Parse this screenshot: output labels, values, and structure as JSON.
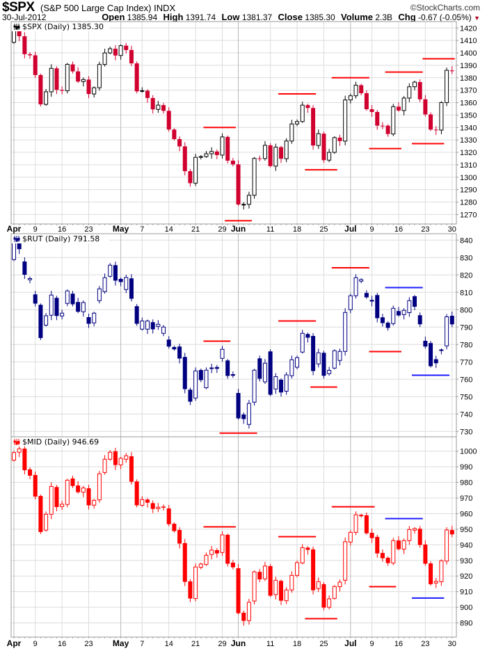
{
  "header": {
    "symbol": "$SPX",
    "name": "(S&P 500 Large Cap Index) INDX",
    "copyright": "©StockCharts.com",
    "date": "30-Jul-2012",
    "open_label": "Open",
    "open": "1385.94",
    "high_label": "High",
    "high": "1391.74",
    "low_label": "Low",
    "low": "1381.37",
    "close_label": "Close",
    "close": "1385.30",
    "volume_label": "Volume",
    "volume": "2.3B",
    "chg_label": "Chg",
    "chg": "-0.67 (-0.05%)",
    "chg_arrow": "▼"
  },
  "chart_data": {
    "type": "candlestick",
    "dates": [
      "2012-04-02",
      "2012-04-03",
      "2012-04-04",
      "2012-04-05",
      "2012-04-09",
      "2012-04-10",
      "2012-04-11",
      "2012-04-12",
      "2012-04-13",
      "2012-04-16",
      "2012-04-17",
      "2012-04-18",
      "2012-04-19",
      "2012-04-20",
      "2012-04-23",
      "2012-04-24",
      "2012-04-25",
      "2012-04-26",
      "2012-04-27",
      "2012-04-30",
      "2012-05-01",
      "2012-05-02",
      "2012-05-03",
      "2012-05-04",
      "2012-05-07",
      "2012-05-08",
      "2012-05-09",
      "2012-05-10",
      "2012-05-11",
      "2012-05-14",
      "2012-05-15",
      "2012-05-16",
      "2012-05-17",
      "2012-05-18",
      "2012-05-21",
      "2012-05-22",
      "2012-05-23",
      "2012-05-24",
      "2012-05-25",
      "2012-05-29",
      "2012-05-30",
      "2012-05-31",
      "2012-06-01",
      "2012-06-04",
      "2012-06-05",
      "2012-06-06",
      "2012-06-07",
      "2012-06-08",
      "2012-06-11",
      "2012-06-12",
      "2012-06-13",
      "2012-06-14",
      "2012-06-15",
      "2012-06-18",
      "2012-06-19",
      "2012-06-20",
      "2012-06-21",
      "2012-06-22",
      "2012-06-25",
      "2012-06-26",
      "2012-06-27",
      "2012-06-28",
      "2012-06-29",
      "2012-07-02",
      "2012-07-03",
      "2012-07-05",
      "2012-07-06",
      "2012-07-09",
      "2012-07-10",
      "2012-07-11",
      "2012-07-12",
      "2012-07-13",
      "2012-07-16",
      "2012-07-17",
      "2012-07-18",
      "2012-07-19",
      "2012-07-20",
      "2012-07-23",
      "2012-07-24",
      "2012-07-25",
      "2012-07-26",
      "2012-07-27",
      "2012-07-30"
    ],
    "x_labels": [
      {
        "date": "2012-04-02",
        "label": "Apr",
        "month": true
      },
      {
        "date": "2012-04-09",
        "label": "9"
      },
      {
        "date": "2012-04-16",
        "label": "16"
      },
      {
        "date": "2012-04-23",
        "label": "23"
      },
      {
        "date": "2012-05-01",
        "label": "May",
        "month": true
      },
      {
        "date": "2012-05-07",
        "label": "7"
      },
      {
        "date": "2012-05-14",
        "label": "14"
      },
      {
        "date": "2012-05-21",
        "label": "21"
      },
      {
        "date": "2012-05-29",
        "label": "29"
      },
      {
        "date": "2012-06-01",
        "label": "Jun",
        "month": true
      },
      {
        "date": "2012-06-11",
        "label": "11"
      },
      {
        "date": "2012-06-18",
        "label": "18"
      },
      {
        "date": "2012-06-25",
        "label": "25"
      },
      {
        "date": "2012-07-02",
        "label": "Jul",
        "month": true
      },
      {
        "date": "2012-07-09",
        "label": "9"
      },
      {
        "date": "2012-07-16",
        "label": "16"
      },
      {
        "date": "2012-07-23",
        "label": "23"
      },
      {
        "date": "2012-07-30",
        "label": "30"
      }
    ],
    "grid": true,
    "panels": [
      {
        "id": "spx",
        "legend": "$SPX (Daily) 1385.30",
        "ylim": [
          1262.4,
          1425.2
        ],
        "yticks": [
          1270,
          1280,
          1290,
          1300,
          1310,
          1320,
          1330,
          1340,
          1350,
          1360,
          1370,
          1380,
          1390,
          1400,
          1410,
          1420
        ],
        "up_color": "#000000",
        "down_color": "#d0002f",
        "color_by_prev_close": true,
        "open": [
          1408.47,
          1419.04,
          1413.38,
          1398.96,
          1398.08,
          1382.2,
          1358.59,
          1368.71,
          1387.57,
          1370.26,
          1369.57,
          1390.78,
          1385.14,
          1376.92,
          1378.53,
          1366.94,
          1371.97,
          1390.69,
          1399.98,
          1403.36,
          1397.91,
          1405.82,
          1402.31,
          1391.57,
          1369.1,
          1369.58,
          1363.72,
          1354.58,
          1357.99,
          1353.39,
          1338.35,
          1330.66,
          1324.8,
          1304.86,
          1295.22,
          1315.99,
          1316.63,
          1318.86,
          1320.68,
          1317.82,
          1332.42,
          1313.32,
          1310.33,
          1278.04,
          1278.18,
          1285.5,
          1315.13,
          1314.99,
          1325.66,
          1308.93,
          1324.18,
          1314.88,
          1329.1,
          1342.84,
          1344.78,
          1357.98,
          1355.69,
          1325.51,
          1335.02,
          1313.72,
          1319.99,
          1331.85,
          1329.04,
          1362.16,
          1365.51,
          1374.02,
          1367.58,
          1354.68,
          1352.46,
          1341.47,
          1341.45,
          1334.76,
          1356.78,
          1353.64,
          1363.67,
          1372.78,
          1376.51,
          1362.66,
          1350.52,
          1338.31,
          1337.89,
          1360.02,
          1385.94
        ],
        "close": [
          1419.04,
          1413.38,
          1398.96,
          1398.08,
          1382.2,
          1358.59,
          1368.71,
          1387.57,
          1370.26,
          1369.57,
          1390.78,
          1385.14,
          1376.92,
          1378.53,
          1366.94,
          1371.97,
          1390.69,
          1399.98,
          1403.36,
          1397.91,
          1405.82,
          1402.31,
          1391.57,
          1369.1,
          1369.58,
          1363.72,
          1354.58,
          1357.99,
          1353.39,
          1338.35,
          1330.66,
          1324.8,
          1304.86,
          1295.22,
          1315.99,
          1316.63,
          1318.86,
          1320.68,
          1317.82,
          1332.42,
          1313.32,
          1310.33,
          1278.04,
          1278.18,
          1285.5,
          1315.13,
          1314.99,
          1325.66,
          1308.93,
          1324.18,
          1314.88,
          1329.1,
          1342.84,
          1344.78,
          1357.98,
          1355.69,
          1325.51,
          1335.02,
          1313.72,
          1319.99,
          1331.85,
          1329.04,
          1362.16,
          1365.51,
          1374.02,
          1367.58,
          1354.68,
          1352.46,
          1341.47,
          1341.45,
          1334.76,
          1356.78,
          1353.64,
          1363.67,
          1372.78,
          1376.51,
          1362.66,
          1350.52,
          1338.31,
          1337.89,
          1360.02,
          1385.97,
          1385.3
        ],
        "levels": [
          {
            "price": 1340,
            "from": "2012-05-23",
            "to": "2012-05-31",
            "color": "#ff0000"
          },
          {
            "price": 1265,
            "from": "2012-05-30",
            "to": "2012-06-05",
            "color": "#ff0000"
          },
          {
            "price": 1367,
            "from": "2012-06-13",
            "to": "2012-06-21",
            "color": "#ff0000"
          },
          {
            "price": 1306,
            "from": "2012-06-20",
            "to": "2012-06-27",
            "color": "#ff0000"
          },
          {
            "price": 1380,
            "from": "2012-06-27",
            "to": "2012-07-06",
            "color": "#ff0000"
          },
          {
            "price": 1323,
            "from": "2012-07-09",
            "to": "2012-07-16",
            "color": "#ff0000"
          },
          {
            "price": 1384.6,
            "from": "2012-07-12",
            "to": "2012-07-20",
            "color": "#ff0000"
          },
          {
            "price": 1327,
            "from": "2012-07-19",
            "to": "2012-07-26",
            "color": "#ff0000"
          },
          {
            "price": 1395.3,
            "from": "2012-07-23",
            "to": "2012-07-30",
            "color": "#ff0000"
          }
        ]
      },
      {
        "id": "rut",
        "legend": "$RUT (Daily) 791.58",
        "ylim": [
          726.9,
          843.7
        ],
        "yticks": [
          730,
          740,
          750,
          760,
          770,
          780,
          790,
          800,
          810,
          820,
          830,
          840
        ],
        "up_color": "#000080",
        "down_color": "#000080",
        "color_by_prev_close": false,
        "open": [
          828.8,
          838.8,
          827.7,
          817.2,
          808.8,
          802.8,
          791.1,
          796.8,
          806.8,
          796.4,
          803.6,
          809.2,
          804.4,
          798.8,
          795.7,
          792.4,
          805.2,
          810.4,
          819.2,
          825.6,
          817.7,
          811.6,
          818,
          802,
          788.8,
          788.8,
          792.8,
          790.4,
          786.4,
          782.8,
          778.5,
          778.8,
          772.8,
          754,
          749.2,
          765.3,
          755.1,
          766.3,
          767,
          772,
          770.8,
          762.9,
          752.1,
          739.7,
          734,
          746.8,
          772,
          758.5,
          776,
          754.4,
          759.7,
          753.1,
          762,
          766.9,
          775.6,
          786,
          784.9,
          768.8,
          775.2,
          763.2,
          766.4,
          770.8,
          776,
          800,
          808,
          816.4,
          809.6,
          805.6,
          808.4,
          795.6,
          792.5,
          792,
          799.2,
          797.2,
          798.3,
          807.7,
          796.8,
          782.1,
          780.8,
          771.5,
          776.7,
          779.2,
          796.5
        ],
        "close": [
          840.5,
          834.8,
          820.1,
          817.9,
          803.5,
          783.7,
          796.5,
          808.4,
          796.4,
          798,
          810.8,
          803.1,
          798.8,
          804.1,
          791.9,
          798,
          812,
          818.4,
          825.6,
          816.7,
          815.9,
          818.5,
          806.3,
          791.9,
          793.5,
          793.5,
          788.7,
          791.6,
          790,
          778.8,
          777.2,
          771.9,
          754.3,
          747.1,
          764.8,
          759.5,
          765.2,
          766.5,
          766,
          777.2,
          761.9,
          762,
          737.5,
          737.1,
          746.1,
          765.2,
          760.3,
          769.2,
          751.1,
          761.5,
          752.4,
          762.5,
          771.2,
          772.4,
          786.4,
          783.9,
          764.7,
          775.2,
          762,
          765.1,
          776.4,
          776,
          798.4,
          808,
          818.4,
          817.3,
          807.1,
          804.7,
          795.1,
          792.3,
          789.5,
          800.8,
          796.7,
          799.6,
          805.2,
          801.7,
          791.6,
          778.8,
          767.5,
          769.2,
          776.9,
          795.9,
          791.58
        ],
        "levels": [
          {
            "price": 781.9,
            "from": "2012-05-23",
            "to": "2012-05-30",
            "color": "#ff0000"
          },
          {
            "price": 729,
            "from": "2012-05-29",
            "to": "2012-06-06",
            "color": "#ff0000"
          },
          {
            "price": 793.5,
            "from": "2012-06-13",
            "to": "2012-06-21",
            "color": "#ff0000"
          },
          {
            "price": 755.5,
            "from": "2012-06-21",
            "to": "2012-06-27",
            "color": "#ff0000"
          },
          {
            "price": 824.1,
            "from": "2012-06-27",
            "to": "2012-07-06",
            "color": "#ff0000"
          },
          {
            "price": 775.9,
            "from": "2012-07-09",
            "to": "2012-07-16",
            "color": "#ff0000"
          },
          {
            "price": 812.7,
            "from": "2012-07-12",
            "to": "2012-07-20",
            "color": "#1a1aff"
          },
          {
            "price": 762.3,
            "from": "2012-07-19",
            "to": "2012-07-27",
            "color": "#1a1aff"
          }
        ]
      },
      {
        "id": "mid",
        "legend": "$MID (Daily) 946.69",
        "ylim": [
          880.9,
          1009.2
        ],
        "yticks": [
          890,
          900,
          910,
          920,
          930,
          940,
          950,
          960,
          970,
          980,
          990,
          1000
        ],
        "up_color": "#ff0000",
        "down_color": "#ff0000",
        "color_by_prev_close": false,
        "open": [
          994.2,
          999.3,
          1001.6,
          988.3,
          984.7,
          971.3,
          949.4,
          959.6,
          977,
          964.5,
          965.9,
          982.5,
          978,
          973.7,
          976.2,
          965.4,
          968.8,
          986.3,
          994.8,
          999.9,
          991.2,
          994.8,
          996.7,
          980.6,
          965.3,
          969,
          966.7,
          963.2,
          964.5,
          963.3,
          953.5,
          949.5,
          941.1,
          916.6,
          905.6,
          925.6,
          927.4,
          933.8,
          936.6,
          935.1,
          946.4,
          928.6,
          925,
          896.5,
          891.5,
          904,
          922.7,
          918.2,
          926.4,
          908.1,
          916.9,
          904.2,
          911.1,
          920.4,
          928.4,
          938.2,
          937.1,
          912,
          914.8,
          900,
          905.7,
          913.2,
          917.3,
          941.8,
          948,
          958.8,
          958.9,
          947.7,
          945.1,
          934.8,
          931.7,
          928.3,
          942.8,
          937.2,
          942.7,
          949.4,
          950.3,
          940.2,
          928.1,
          915.5,
          916.4,
          929.6,
          949.5
        ],
        "close": [
          999.1,
          1001.5,
          987.8,
          984.3,
          970.9,
          948.2,
          959.6,
          977.4,
          964.2,
          966,
          981.4,
          977.7,
          973.7,
          976.4,
          965.3,
          968.5,
          985.5,
          994.8,
          999.3,
          991.1,
          995.4,
          997,
          980.4,
          965.3,
          969,
          967,
          963,
          964.1,
          963.8,
          953.2,
          948.8,
          940.8,
          916.3,
          905.6,
          925.8,
          927.7,
          933.3,
          936.6,
          934.5,
          946.4,
          927.9,
          925.6,
          896.2,
          891.3,
          903.2,
          922.7,
          917.9,
          926.4,
          907.4,
          917.3,
          904.2,
          911.1,
          920.4,
          928.6,
          938.2,
          936.8,
          910.9,
          916.4,
          899.8,
          905.4,
          913.3,
          916.1,
          942,
          948,
          959.2,
          959,
          947.4,
          944.3,
          934.5,
          931.4,
          928.3,
          942.7,
          937.2,
          942.7,
          949.8,
          950.4,
          939.9,
          927.9,
          914.8,
          916.6,
          929.8,
          949.5,
          946.69
        ],
        "levels": [
          {
            "price": 951.5,
            "from": "2012-05-23",
            "to": "2012-05-31",
            "color": "#ff0000"
          },
          {
            "price": 879,
            "from": "2012-05-29",
            "to": "2012-06-06",
            "color": "#ff0000"
          },
          {
            "price": 945.2,
            "from": "2012-06-13",
            "to": "2012-06-21",
            "color": "#ff0000"
          },
          {
            "price": 892.7,
            "from": "2012-06-20",
            "to": "2012-06-27",
            "color": "#ff0000"
          },
          {
            "price": 964.4,
            "from": "2012-06-27",
            "to": "2012-07-09",
            "color": "#ff0000"
          },
          {
            "price": 913.2,
            "from": "2012-07-09",
            "to": "2012-07-13",
            "color": "#ff0000"
          },
          {
            "price": 956.8,
            "from": "2012-07-12",
            "to": "2012-07-20",
            "color": "#1a1aff"
          },
          {
            "price": 905.9,
            "from": "2012-07-19",
            "to": "2012-07-26",
            "color": "#1a1aff"
          }
        ]
      }
    ]
  }
}
